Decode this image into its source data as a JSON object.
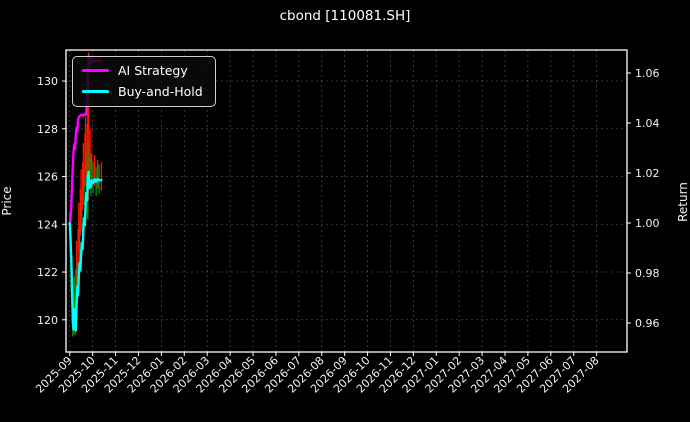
{
  "title": "cbond [110081.SH]",
  "chart_data": {
    "type": "line",
    "title": "cbond [110081.SH]",
    "ylabel_left": "Price",
    "ylabel_right": "Return",
    "background": "#000000",
    "text_color": "#f2f2f2",
    "grid": true,
    "grid_style": "dashed",
    "x_tick_labels": [
      "2025-09",
      "2025-10",
      "2025-11",
      "2025-12",
      "2026-01",
      "2026-02",
      "2026-03",
      "2026-04",
      "2026-05",
      "2026-06",
      "2026-07",
      "2026-08",
      "2026-09",
      "2026-10",
      "2026-11",
      "2026-12",
      "2027-01",
      "2027-02",
      "2027-03",
      "2027-04",
      "2027-05",
      "2027-06",
      "2027-07",
      "2027-08"
    ],
    "y_left_ticks": [
      120,
      122,
      124,
      126,
      128,
      130
    ],
    "y_right_ticks": [
      "0.96",
      "0.98",
      "1.00",
      "1.02",
      "1.04",
      "1.06"
    ],
    "ylim_left": [
      118.65,
      131.3
    ],
    "ylim_right": [
      0.9484,
      1.0692
    ],
    "xlim_days": [
      0,
      745
    ],
    "x_first_tick_day": 5,
    "x_tick_interval_days": 30.42,
    "legend": {
      "position": "upper-left",
      "entries": [
        {
          "label": "AI Strategy",
          "color": "#ff00ff"
        },
        {
          "label": "Buy-and-Hold",
          "color": "#00ffff"
        }
      ]
    },
    "series": [
      {
        "name": "AI Strategy",
        "axis": "left",
        "color": "#ff00ff",
        "width": 2.4,
        "points": [
          [
            5,
            124.0
          ],
          [
            6,
            124.2
          ],
          [
            7,
            124.8
          ],
          [
            8,
            125.6
          ],
          [
            9,
            126.4
          ],
          [
            10,
            127.0
          ],
          [
            11,
            127.35
          ],
          [
            12,
            127.15
          ],
          [
            13,
            127.7
          ],
          [
            14,
            128.05
          ],
          [
            15,
            127.9
          ],
          [
            16,
            128.3
          ],
          [
            17,
            128.5
          ],
          [
            19,
            128.55
          ],
          [
            21,
            128.6
          ],
          [
            23,
            128.55
          ],
          [
            25,
            128.62
          ],
          [
            27,
            128.58
          ],
          [
            28,
            129.3
          ],
          [
            29,
            130.4
          ],
          [
            30,
            131.05
          ],
          [
            31,
            130.6
          ],
          [
            32,
            131.0
          ],
          [
            33,
            130.7
          ],
          [
            34,
            130.9
          ],
          [
            36,
            130.8
          ],
          [
            38,
            130.9
          ],
          [
            40,
            130.82
          ],
          [
            42,
            130.88
          ],
          [
            44,
            130.8
          ],
          [
            47,
            130.85
          ]
        ]
      },
      {
        "name": "Buy-and-Hold",
        "axis": "right",
        "color": "#00ffff",
        "width": 2.4,
        "points": [
          [
            5,
            1.0
          ],
          [
            6,
            0.994
          ],
          [
            7,
            0.985
          ],
          [
            8,
            0.973
          ],
          [
            9,
            0.963
          ],
          [
            10,
            0.9575
          ],
          [
            11,
            0.9655
          ],
          [
            12,
            0.9595
          ],
          [
            13,
            0.957
          ],
          [
            14,
            0.9665
          ],
          [
            15,
            0.9745
          ],
          [
            16,
            0.971
          ],
          [
            17,
            0.9785
          ],
          [
            18,
            0.984
          ],
          [
            19,
            0.981
          ],
          [
            20,
            0.987
          ],
          [
            21,
            0.992
          ],
          [
            22,
            0.9895
          ],
          [
            23,
            0.9965
          ],
          [
            24,
            1.002
          ],
          [
            25,
            0.999
          ],
          [
            26,
            1.007
          ],
          [
            27,
            1.012
          ],
          [
            28,
            1.009
          ],
          [
            29,
            1.0185
          ],
          [
            30,
            1.0205
          ],
          [
            31,
            1.014
          ],
          [
            32,
            1.0165
          ],
          [
            33,
            1.0145
          ],
          [
            34,
            1.017
          ],
          [
            36,
            1.016
          ],
          [
            38,
            1.0175
          ],
          [
            40,
            1.0165
          ],
          [
            42,
            1.0175
          ],
          [
            44,
            1.017
          ],
          [
            47,
            1.0172
          ]
        ]
      }
    ],
    "candles": {
      "up_color": "#ff1500",
      "down_color": "#009900",
      "bar_width": 1.3,
      "bars": [
        [
          5,
          123.6,
          124.5,
          "r"
        ],
        [
          6,
          122.6,
          124.3,
          "g"
        ],
        [
          7,
          121.2,
          123.0,
          "g"
        ],
        [
          8,
          119.8,
          122.2,
          "g"
        ],
        [
          9,
          119.3,
          120.9,
          "g"
        ],
        [
          10,
          119.4,
          121.3,
          "r"
        ],
        [
          11,
          119.9,
          121.8,
          "g"
        ],
        [
          12,
          119.35,
          120.8,
          "g"
        ],
        [
          13,
          120.3,
          122.1,
          "r"
        ],
        [
          14,
          121.3,
          123.3,
          "r"
        ],
        [
          15,
          120.7,
          122.3,
          "g"
        ],
        [
          16,
          121.9,
          123.8,
          "r"
        ],
        [
          17,
          122.9,
          124.9,
          "r"
        ],
        [
          18,
          122.4,
          124.1,
          "g"
        ],
        [
          19,
          123.5,
          125.5,
          "r"
        ],
        [
          20,
          124.3,
          126.3,
          "r"
        ],
        [
          21,
          123.7,
          125.3,
          "g"
        ],
        [
          22,
          124.6,
          126.6,
          "r"
        ],
        [
          23,
          125.3,
          127.4,
          "r"
        ],
        [
          24,
          124.8,
          126.4,
          "g"
        ],
        [
          25,
          125.6,
          127.8,
          "r"
        ],
        [
          26,
          126.2,
          128.5,
          "r"
        ],
        [
          27,
          125.5,
          127.1,
          "g"
        ],
        [
          28,
          126.0,
          128.2,
          "r"
        ],
        [
          29,
          124.2,
          128.9,
          "g"
        ],
        [
          30,
          125.0,
          131.2,
          "r"
        ],
        [
          31,
          125.8,
          127.5,
          "g"
        ],
        [
          32,
          126.3,
          128.0,
          "r"
        ],
        [
          33,
          125.2,
          126.8,
          "g"
        ],
        [
          34,
          125.5,
          127.0,
          "r"
        ],
        [
          36,
          125.3,
          126.6,
          "g"
        ],
        [
          38,
          125.6,
          126.9,
          "r"
        ],
        [
          40,
          125.2,
          126.4,
          "g"
        ],
        [
          42,
          125.5,
          126.7,
          "r"
        ],
        [
          44,
          125.3,
          126.5,
          "g"
        ],
        [
          47,
          125.4,
          126.6,
          "r"
        ]
      ]
    }
  }
}
